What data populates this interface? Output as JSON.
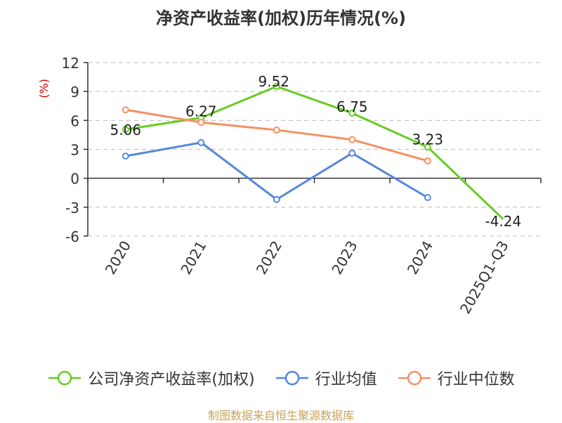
{
  "title": "净资产收益率(加权)历年情况(%)",
  "source": "制图数据来自恒生聚源数据库",
  "chart_data": {
    "type": "line",
    "title": "净资产收益率(加权)历年情况(%)",
    "ylabel": "(%)",
    "categories": [
      "2020",
      "2021",
      "2022",
      "2023",
      "2024",
      "2025Q1-Q3"
    ],
    "ylim": [
      -6,
      12
    ],
    "yticks": [
      12,
      9,
      6,
      3,
      0,
      -3,
      -6
    ],
    "grid": true,
    "legend_position": "bottom",
    "series": [
      {
        "name": "公司净资产收益率(加权)",
        "color": "#66cc22",
        "values": [
          5.06,
          6.27,
          9.52,
          6.75,
          3.23,
          -4.24
        ],
        "labels": [
          "5.06",
          "6.27",
          "9.52",
          "6.75",
          "3.23",
          "-4.24"
        ]
      },
      {
        "name": "行业均值",
        "color": "#5586e0",
        "values": [
          2.3,
          3.7,
          -2.2,
          2.6,
          -2.0,
          null
        ]
      },
      {
        "name": "行业中位数",
        "color": "#f59060",
        "values": [
          7.1,
          5.8,
          5.0,
          4.0,
          1.8,
          null
        ]
      }
    ]
  }
}
